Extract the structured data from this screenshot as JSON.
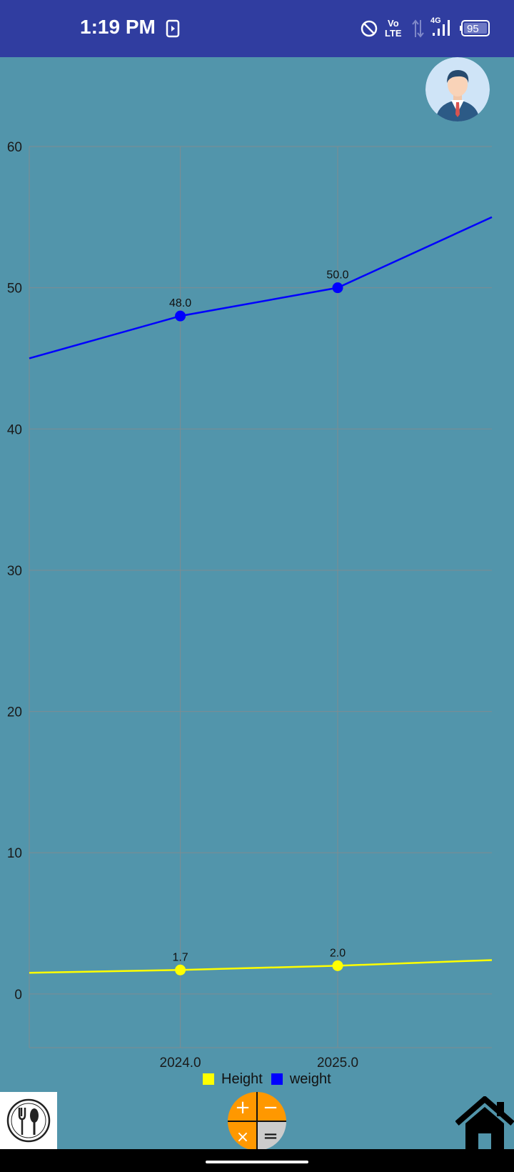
{
  "status_bar": {
    "time": "1:19 PM",
    "battery": "95",
    "network": "4G",
    "volte": "Vo LTE",
    "icons": [
      "screen-record-icon",
      "do-not-disturb-icon",
      "volte-icon",
      "data-arrows-icon",
      "signal-icon",
      "battery-icon"
    ]
  },
  "header": {
    "avatar_icon": "profile-avatar-icon"
  },
  "chart_data": {
    "type": "line",
    "title": "",
    "xlabel": "",
    "ylabel": "",
    "x": [
      2024.0,
      2025.0
    ],
    "x_tick_labels": [
      "2024.0",
      "2025.0"
    ],
    "xlim": [
      2023.04,
      2025.98
    ],
    "ylim": [
      -3.8,
      60
    ],
    "y_ticks": [
      0,
      10,
      20,
      30,
      40,
      50,
      60
    ],
    "grid": true,
    "legend_position": "bottom-center",
    "series": [
      {
        "name": "Height",
        "color": "#ffff00",
        "values": [
          1.7,
          2.0
        ],
        "labels": [
          "1.7",
          "2.0"
        ],
        "line_start": 1.5,
        "line_end": 2.4
      },
      {
        "name": "weight",
        "color": "#0000ff",
        "values": [
          48.0,
          50.0
        ],
        "labels": [
          "48.0",
          "50.0"
        ],
        "line_start": 45.0,
        "line_end": 55.0
      }
    ]
  },
  "bottom_bar": {
    "food_icon": "fork-spoon-icon",
    "calculator_icon": "calculator-icon",
    "calculator_symbols": [
      "+",
      "−",
      "×",
      "="
    ],
    "home_icon": "home-icon",
    "colors": {
      "calc_orange": "#ff9800",
      "calc_gray": "#cccccc"
    }
  }
}
